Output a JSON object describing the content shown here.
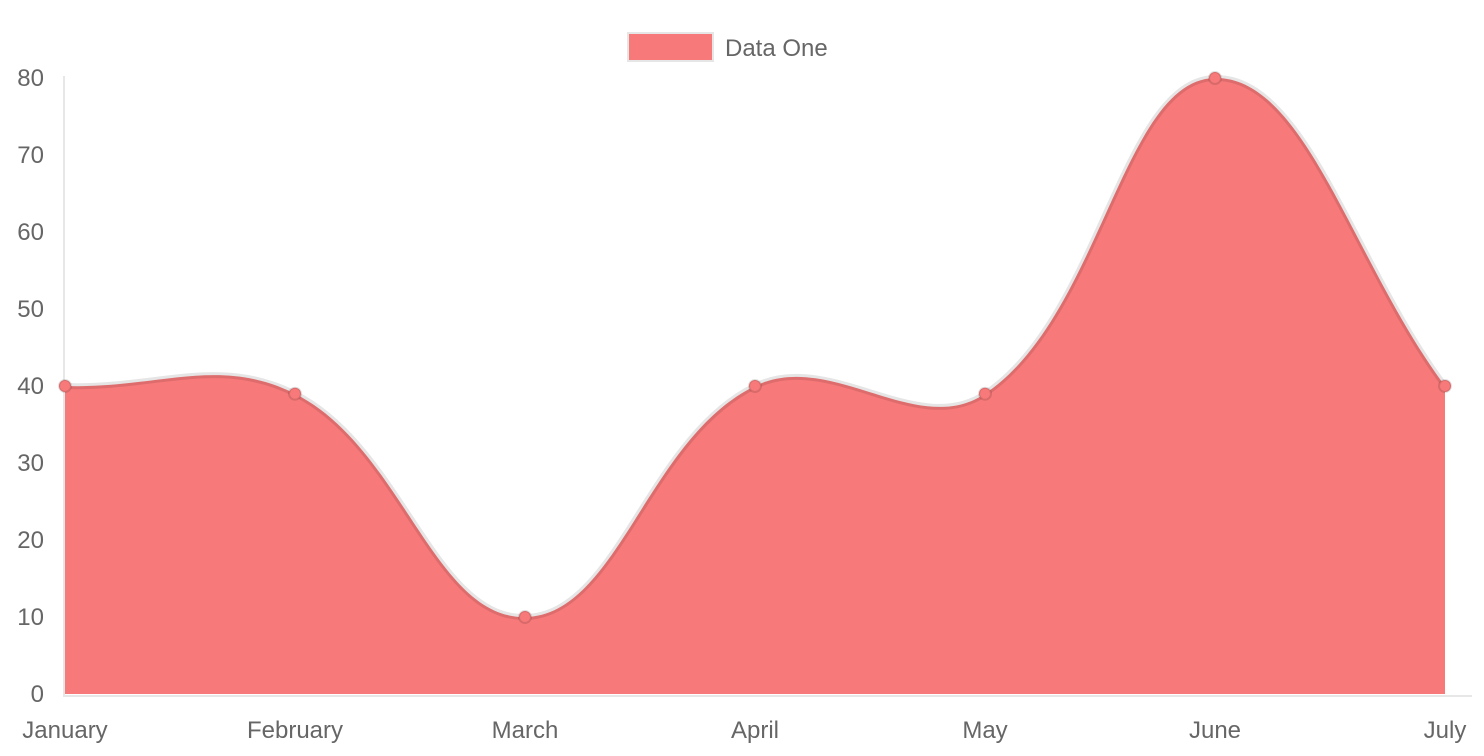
{
  "chart_data": {
    "type": "area",
    "title": "",
    "categories": [
      "January",
      "February",
      "March",
      "April",
      "May",
      "June",
      "July"
    ],
    "series": [
      {
        "name": "Data One",
        "values": [
          40,
          39,
          10,
          40,
          39,
          80,
          40
        ]
      }
    ],
    "xlabel": "",
    "ylabel": "",
    "ylim": [
      0,
      80
    ],
    "y_ticks": [
      0,
      10,
      20,
      30,
      40,
      50,
      60,
      70,
      80
    ],
    "grid": false,
    "line_tension": 0.4,
    "legend": {
      "position": "top",
      "label": "Data One"
    },
    "colors": {
      "fill": "#f87979",
      "line_stroke": "rgba(0,0,0,0.10)",
      "point_fill": "#f87979",
      "point_border": "rgba(0,0,0,0.12)",
      "axis_line": "#e7e7e7",
      "tick_text": "#666666",
      "legend_swatch_border": "#e6e6e6"
    }
  }
}
